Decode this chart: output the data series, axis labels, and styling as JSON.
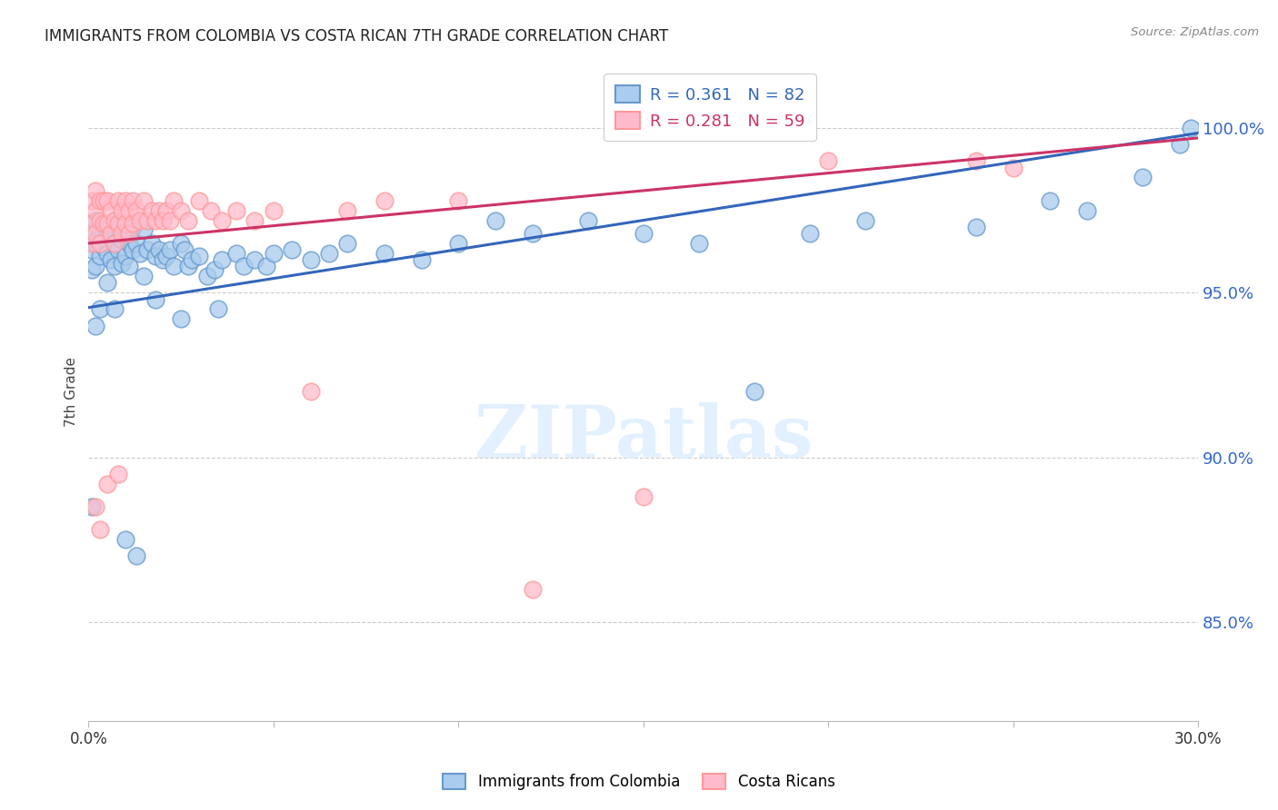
{
  "title": "IMMIGRANTS FROM COLOMBIA VS COSTA RICAN 7TH GRADE CORRELATION CHART",
  "source": "Source: ZipAtlas.com",
  "ylabel": "7th Grade",
  "ytick_values": [
    1.0,
    0.95,
    0.9,
    0.85
  ],
  "xmin": 0.0,
  "xmax": 0.3,
  "ymin": 0.82,
  "ymax": 1.02,
  "legend_blue_r": "R = 0.361",
  "legend_blue_n": "N = 82",
  "legend_pink_r": "R = 0.281",
  "legend_pink_n": "N = 59",
  "blue_face_color": "#AACCEE",
  "blue_edge_color": "#6699CC",
  "pink_face_color": "#FFBBCC",
  "pink_edge_color": "#FF9999",
  "blue_line_color": "#3366BB",
  "pink_line_color": "#CC3366",
  "watermark": "ZIPatlas",
  "blue_line_x0": 0.0,
  "blue_line_y0": 0.9455,
  "blue_line_x1": 0.3,
  "blue_line_y1": 0.9985,
  "pink_line_x0": 0.0,
  "pink_line_y0": 0.965,
  "pink_line_x1": 0.3,
  "pink_line_y1": 0.997,
  "blue_x": [
    0.001,
    0.001,
    0.001,
    0.002,
    0.002,
    0.002,
    0.003,
    0.003,
    0.004,
    0.004,
    0.005,
    0.005,
    0.006,
    0.006,
    0.007,
    0.007,
    0.008,
    0.008,
    0.009,
    0.009,
    0.01,
    0.01,
    0.011,
    0.011,
    0.012,
    0.012,
    0.013,
    0.014,
    0.015,
    0.015,
    0.016,
    0.017,
    0.018,
    0.019,
    0.02,
    0.021,
    0.022,
    0.023,
    0.025,
    0.026,
    0.027,
    0.028,
    0.03,
    0.032,
    0.034,
    0.036,
    0.04,
    0.042,
    0.045,
    0.048,
    0.05,
    0.055,
    0.06,
    0.065,
    0.07,
    0.08,
    0.09,
    0.1,
    0.11,
    0.12,
    0.135,
    0.15,
    0.165,
    0.18,
    0.195,
    0.21,
    0.24,
    0.26,
    0.27,
    0.285,
    0.295,
    0.298,
    0.001,
    0.002,
    0.003,
    0.005,
    0.007,
    0.01,
    0.013,
    0.018,
    0.025,
    0.035
  ],
  "blue_y": [
    0.968,
    0.963,
    0.957,
    0.972,
    0.965,
    0.958,
    0.968,
    0.961,
    0.971,
    0.964,
    0.969,
    0.962,
    0.967,
    0.96,
    0.965,
    0.958,
    0.97,
    0.963,
    0.966,
    0.959,
    0.968,
    0.961,
    0.965,
    0.958,
    0.97,
    0.963,
    0.965,
    0.962,
    0.969,
    0.955,
    0.963,
    0.965,
    0.961,
    0.963,
    0.96,
    0.961,
    0.963,
    0.958,
    0.965,
    0.963,
    0.958,
    0.96,
    0.961,
    0.955,
    0.957,
    0.96,
    0.962,
    0.958,
    0.96,
    0.958,
    0.962,
    0.963,
    0.96,
    0.962,
    0.965,
    0.962,
    0.96,
    0.965,
    0.972,
    0.968,
    0.972,
    0.968,
    0.965,
    0.92,
    0.968,
    0.972,
    0.97,
    0.978,
    0.975,
    0.985,
    0.995,
    1.0,
    0.885,
    0.94,
    0.945,
    0.953,
    0.945,
    0.875,
    0.87,
    0.948,
    0.942,
    0.945
  ],
  "pink_x": [
    0.001,
    0.001,
    0.001,
    0.002,
    0.002,
    0.002,
    0.003,
    0.003,
    0.003,
    0.004,
    0.004,
    0.005,
    0.005,
    0.006,
    0.006,
    0.007,
    0.007,
    0.008,
    0.008,
    0.009,
    0.009,
    0.01,
    0.01,
    0.011,
    0.011,
    0.012,
    0.012,
    0.013,
    0.014,
    0.015,
    0.016,
    0.017,
    0.018,
    0.019,
    0.02,
    0.021,
    0.022,
    0.023,
    0.025,
    0.027,
    0.03,
    0.033,
    0.036,
    0.04,
    0.045,
    0.05,
    0.06,
    0.07,
    0.08,
    0.1,
    0.12,
    0.15,
    0.2,
    0.24,
    0.25,
    0.002,
    0.003,
    0.005,
    0.008
  ],
  "pink_y": [
    0.978,
    0.971,
    0.965,
    0.981,
    0.975,
    0.968,
    0.978,
    0.972,
    0.965,
    0.978,
    0.971,
    0.978,
    0.971,
    0.975,
    0.968,
    0.972,
    0.965,
    0.978,
    0.971,
    0.975,
    0.968,
    0.978,
    0.971,
    0.975,
    0.968,
    0.978,
    0.971,
    0.975,
    0.972,
    0.978,
    0.972,
    0.975,
    0.972,
    0.975,
    0.972,
    0.975,
    0.972,
    0.978,
    0.975,
    0.972,
    0.978,
    0.975,
    0.972,
    0.975,
    0.972,
    0.975,
    0.92,
    0.975,
    0.978,
    0.978,
    0.86,
    0.888,
    0.99,
    0.99,
    0.988,
    0.885,
    0.878,
    0.892,
    0.895
  ]
}
